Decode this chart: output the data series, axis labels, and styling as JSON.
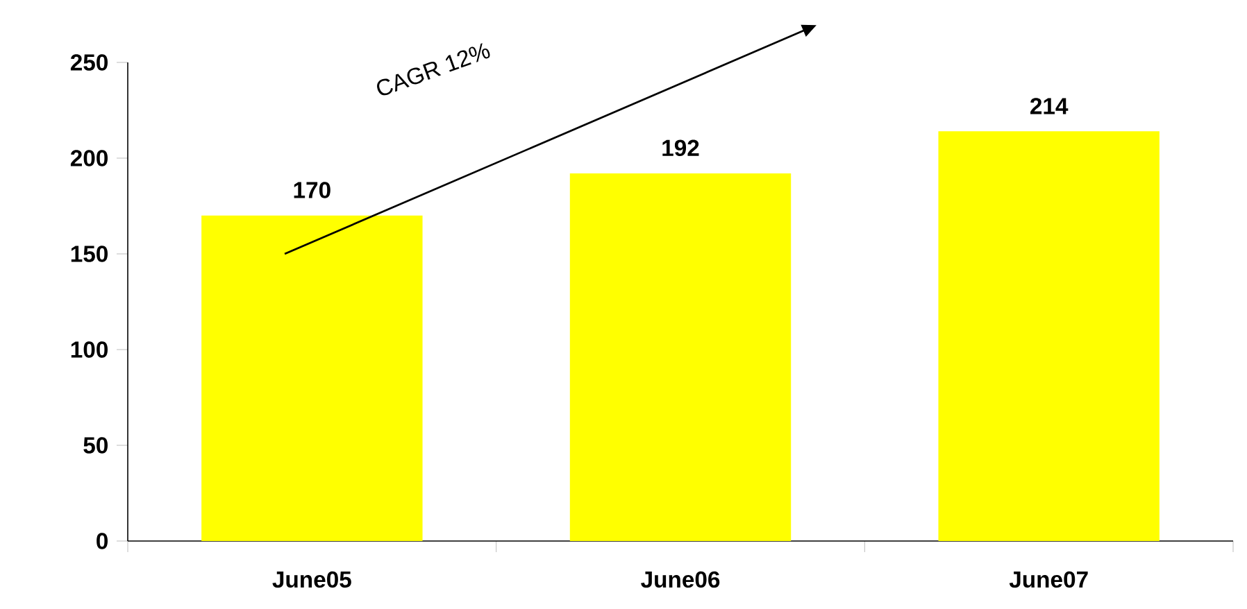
{
  "chart_data": {
    "type": "bar",
    "categories": [
      "June05",
      "June06",
      "June07"
    ],
    "values": [
      170,
      192,
      214
    ],
    "color": "#ffff00",
    "ylim": [
      0,
      250
    ],
    "yticks": [
      0,
      50,
      100,
      150,
      200,
      250
    ],
    "data_labels": true,
    "annotations": [
      "CAGR 12%"
    ]
  }
}
